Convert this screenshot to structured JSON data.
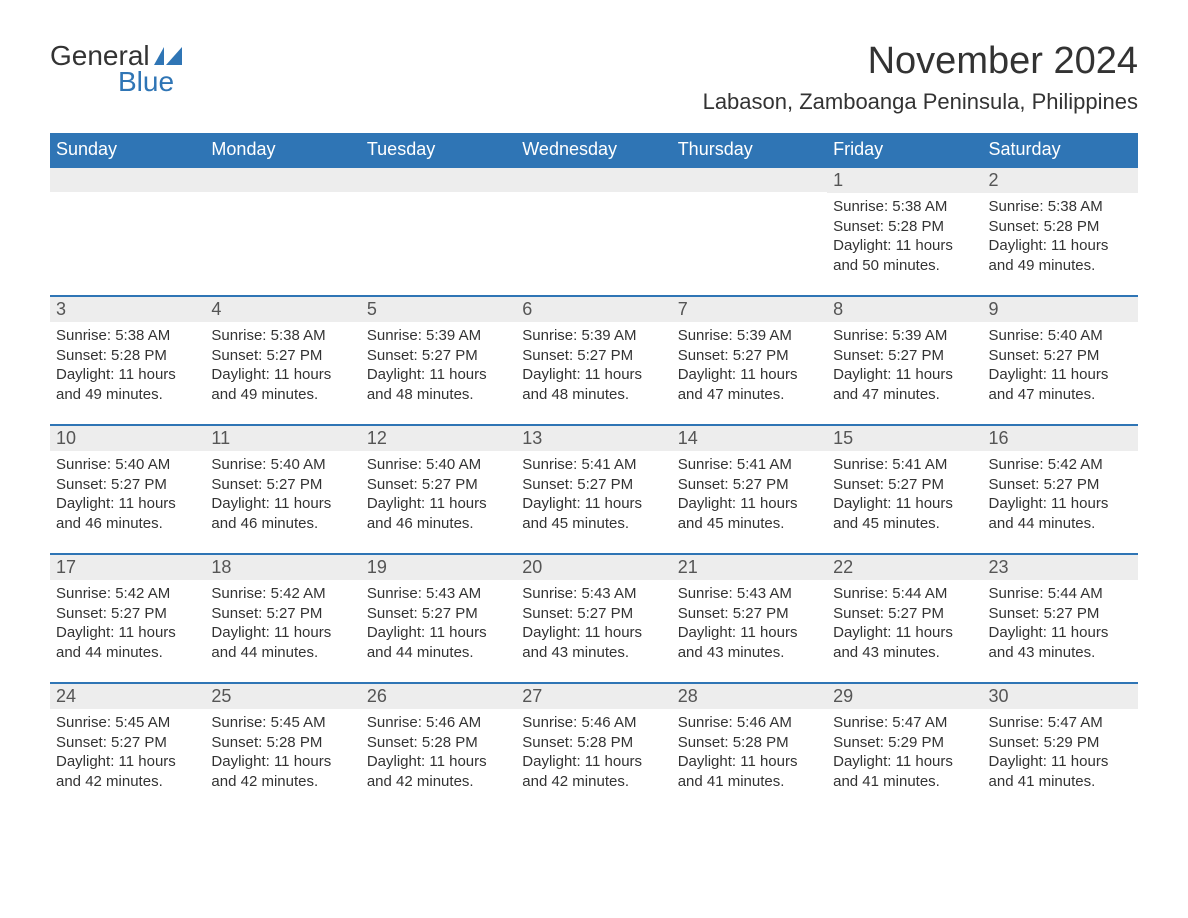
{
  "logo": {
    "text_top": "General",
    "text_bottom": "Blue",
    "sail_color": "#2f75b5"
  },
  "title": "November 2024",
  "location": "Labason, Zamboanga Peninsula, Philippines",
  "colors": {
    "header_bg": "#2f75b5",
    "header_text": "#ffffff",
    "daynum_bg": "#ededed",
    "border": "#2f75b5",
    "text": "#333333",
    "page_bg": "#ffffff"
  },
  "fonts": {
    "family": "Arial, Helvetica, sans-serif",
    "title_size": 38,
    "location_size": 22,
    "dayname_size": 18,
    "daynum_size": 18,
    "body_size": 15
  },
  "daynames": [
    "Sunday",
    "Monday",
    "Tuesday",
    "Wednesday",
    "Thursday",
    "Friday",
    "Saturday"
  ],
  "weeks": [
    [
      {
        "num": "",
        "sunrise": "",
        "sunset": "",
        "daylight": ""
      },
      {
        "num": "",
        "sunrise": "",
        "sunset": "",
        "daylight": ""
      },
      {
        "num": "",
        "sunrise": "",
        "sunset": "",
        "daylight": ""
      },
      {
        "num": "",
        "sunrise": "",
        "sunset": "",
        "daylight": ""
      },
      {
        "num": "",
        "sunrise": "",
        "sunset": "",
        "daylight": ""
      },
      {
        "num": "1",
        "sunrise": "Sunrise: 5:38 AM",
        "sunset": "Sunset: 5:28 PM",
        "daylight": "Daylight: 11 hours and 50 minutes."
      },
      {
        "num": "2",
        "sunrise": "Sunrise: 5:38 AM",
        "sunset": "Sunset: 5:28 PM",
        "daylight": "Daylight: 11 hours and 49 minutes."
      }
    ],
    [
      {
        "num": "3",
        "sunrise": "Sunrise: 5:38 AM",
        "sunset": "Sunset: 5:28 PM",
        "daylight": "Daylight: 11 hours and 49 minutes."
      },
      {
        "num": "4",
        "sunrise": "Sunrise: 5:38 AM",
        "sunset": "Sunset: 5:27 PM",
        "daylight": "Daylight: 11 hours and 49 minutes."
      },
      {
        "num": "5",
        "sunrise": "Sunrise: 5:39 AM",
        "sunset": "Sunset: 5:27 PM",
        "daylight": "Daylight: 11 hours and 48 minutes."
      },
      {
        "num": "6",
        "sunrise": "Sunrise: 5:39 AM",
        "sunset": "Sunset: 5:27 PM",
        "daylight": "Daylight: 11 hours and 48 minutes."
      },
      {
        "num": "7",
        "sunrise": "Sunrise: 5:39 AM",
        "sunset": "Sunset: 5:27 PM",
        "daylight": "Daylight: 11 hours and 47 minutes."
      },
      {
        "num": "8",
        "sunrise": "Sunrise: 5:39 AM",
        "sunset": "Sunset: 5:27 PM",
        "daylight": "Daylight: 11 hours and 47 minutes."
      },
      {
        "num": "9",
        "sunrise": "Sunrise: 5:40 AM",
        "sunset": "Sunset: 5:27 PM",
        "daylight": "Daylight: 11 hours and 47 minutes."
      }
    ],
    [
      {
        "num": "10",
        "sunrise": "Sunrise: 5:40 AM",
        "sunset": "Sunset: 5:27 PM",
        "daylight": "Daylight: 11 hours and 46 minutes."
      },
      {
        "num": "11",
        "sunrise": "Sunrise: 5:40 AM",
        "sunset": "Sunset: 5:27 PM",
        "daylight": "Daylight: 11 hours and 46 minutes."
      },
      {
        "num": "12",
        "sunrise": "Sunrise: 5:40 AM",
        "sunset": "Sunset: 5:27 PM",
        "daylight": "Daylight: 11 hours and 46 minutes."
      },
      {
        "num": "13",
        "sunrise": "Sunrise: 5:41 AM",
        "sunset": "Sunset: 5:27 PM",
        "daylight": "Daylight: 11 hours and 45 minutes."
      },
      {
        "num": "14",
        "sunrise": "Sunrise: 5:41 AM",
        "sunset": "Sunset: 5:27 PM",
        "daylight": "Daylight: 11 hours and 45 minutes."
      },
      {
        "num": "15",
        "sunrise": "Sunrise: 5:41 AM",
        "sunset": "Sunset: 5:27 PM",
        "daylight": "Daylight: 11 hours and 45 minutes."
      },
      {
        "num": "16",
        "sunrise": "Sunrise: 5:42 AM",
        "sunset": "Sunset: 5:27 PM",
        "daylight": "Daylight: 11 hours and 44 minutes."
      }
    ],
    [
      {
        "num": "17",
        "sunrise": "Sunrise: 5:42 AM",
        "sunset": "Sunset: 5:27 PM",
        "daylight": "Daylight: 11 hours and 44 minutes."
      },
      {
        "num": "18",
        "sunrise": "Sunrise: 5:42 AM",
        "sunset": "Sunset: 5:27 PM",
        "daylight": "Daylight: 11 hours and 44 minutes."
      },
      {
        "num": "19",
        "sunrise": "Sunrise: 5:43 AM",
        "sunset": "Sunset: 5:27 PM",
        "daylight": "Daylight: 11 hours and 44 minutes."
      },
      {
        "num": "20",
        "sunrise": "Sunrise: 5:43 AM",
        "sunset": "Sunset: 5:27 PM",
        "daylight": "Daylight: 11 hours and 43 minutes."
      },
      {
        "num": "21",
        "sunrise": "Sunrise: 5:43 AM",
        "sunset": "Sunset: 5:27 PM",
        "daylight": "Daylight: 11 hours and 43 minutes."
      },
      {
        "num": "22",
        "sunrise": "Sunrise: 5:44 AM",
        "sunset": "Sunset: 5:27 PM",
        "daylight": "Daylight: 11 hours and 43 minutes."
      },
      {
        "num": "23",
        "sunrise": "Sunrise: 5:44 AM",
        "sunset": "Sunset: 5:27 PM",
        "daylight": "Daylight: 11 hours and 43 minutes."
      }
    ],
    [
      {
        "num": "24",
        "sunrise": "Sunrise: 5:45 AM",
        "sunset": "Sunset: 5:27 PM",
        "daylight": "Daylight: 11 hours and 42 minutes."
      },
      {
        "num": "25",
        "sunrise": "Sunrise: 5:45 AM",
        "sunset": "Sunset: 5:28 PM",
        "daylight": "Daylight: 11 hours and 42 minutes."
      },
      {
        "num": "26",
        "sunrise": "Sunrise: 5:46 AM",
        "sunset": "Sunset: 5:28 PM",
        "daylight": "Daylight: 11 hours and 42 minutes."
      },
      {
        "num": "27",
        "sunrise": "Sunrise: 5:46 AM",
        "sunset": "Sunset: 5:28 PM",
        "daylight": "Daylight: 11 hours and 42 minutes."
      },
      {
        "num": "28",
        "sunrise": "Sunrise: 5:46 AM",
        "sunset": "Sunset: 5:28 PM",
        "daylight": "Daylight: 11 hours and 41 minutes."
      },
      {
        "num": "29",
        "sunrise": "Sunrise: 5:47 AM",
        "sunset": "Sunset: 5:29 PM",
        "daylight": "Daylight: 11 hours and 41 minutes."
      },
      {
        "num": "30",
        "sunrise": "Sunrise: 5:47 AM",
        "sunset": "Sunset: 5:29 PM",
        "daylight": "Daylight: 11 hours and 41 minutes."
      }
    ]
  ]
}
